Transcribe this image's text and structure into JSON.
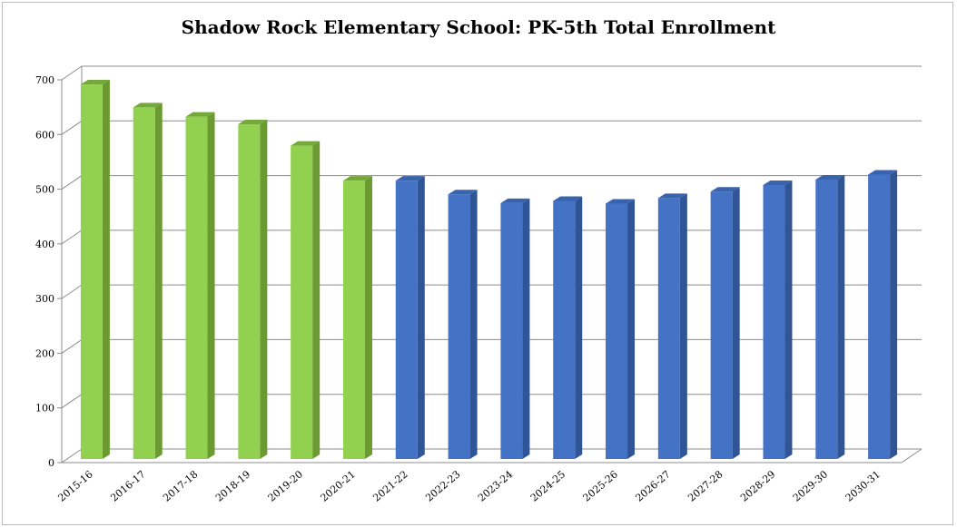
{
  "chart_data": {
    "type": "bar",
    "title": "Shadow Rock Elementary School: PK-5th Total Enrollment",
    "xlabel": "",
    "ylabel": "",
    "categories": [
      "2015-16",
      "2016-17",
      "2017-18",
      "2018-19",
      "2019-20",
      "2020-21",
      "2021-22",
      "2022-23",
      "2023-24",
      "2024-25",
      "2025-26",
      "2026-27",
      "2027-28",
      "2028-29",
      "2029-30",
      "2030-31"
    ],
    "values": [
      685,
      643,
      626,
      612,
      573,
      509,
      509,
      484,
      468,
      472,
      467,
      477,
      489,
      501,
      511,
      520
    ],
    "ylim": [
      0,
      700
    ],
    "yticks": [
      0,
      100,
      200,
      300,
      400,
      500,
      600,
      700
    ],
    "grid": true,
    "style": "3d-column",
    "colors": {
      "actual": "#92d050",
      "actual_side": "#6a9a30",
      "actual_top": "#75a83a",
      "projected": "#4472c4",
      "projected_side": "#2f5597",
      "projected_top": "#3a63ad"
    },
    "actual_count": 6
  }
}
